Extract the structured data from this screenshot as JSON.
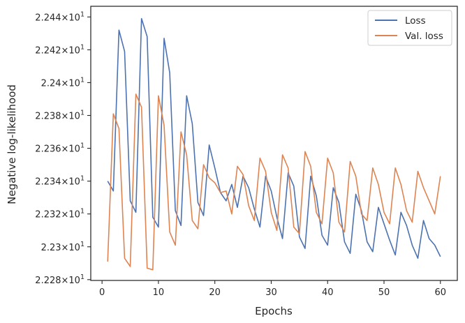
{
  "chart_data": {
    "type": "line",
    "title": "",
    "xlabel": "Epochs",
    "ylabel": "Negative log-likelihood",
    "xlim": [
      -2,
      63
    ],
    "ylim": [
      22.2795,
      22.4465
    ],
    "x_ticks": [
      0,
      10,
      20,
      30,
      40,
      50,
      60
    ],
    "y_ticks": [
      {
        "value": 22.28,
        "mantissa": "2.228",
        "base": "10",
        "exp": "1"
      },
      {
        "value": 22.3,
        "mantissa": "2.23",
        "base": "10",
        "exp": "1"
      },
      {
        "value": 22.32,
        "mantissa": "2.232",
        "base": "10",
        "exp": "1"
      },
      {
        "value": 22.34,
        "mantissa": "2.234",
        "base": "10",
        "exp": "1"
      },
      {
        "value": 22.36,
        "mantissa": "2.236",
        "base": "10",
        "exp": "1"
      },
      {
        "value": 22.38,
        "mantissa": "2.238",
        "base": "10",
        "exp": "1"
      },
      {
        "value": 22.4,
        "mantissa": "2.24",
        "base": "10",
        "exp": "1"
      },
      {
        "value": 22.42,
        "mantissa": "2.242",
        "base": "10",
        "exp": "1"
      },
      {
        "value": 22.44,
        "mantissa": "2.244",
        "base": "10",
        "exp": "1"
      }
    ],
    "grid": false,
    "legend_position": "top-right",
    "x": [
      1,
      2,
      3,
      4,
      5,
      6,
      7,
      8,
      9,
      10,
      11,
      12,
      13,
      14,
      15,
      16,
      17,
      18,
      19,
      20,
      21,
      22,
      23,
      24,
      25,
      26,
      27,
      28,
      29,
      30,
      31,
      32,
      33,
      34,
      35,
      36,
      37,
      38,
      39,
      40,
      41,
      42,
      43,
      44,
      45,
      46,
      47,
      48,
      49,
      50,
      51,
      52,
      53,
      54,
      55,
      56,
      57,
      58,
      59,
      60
    ],
    "series": [
      {
        "name": "Loss",
        "color": "#4c72b0",
        "values": [
          22.34,
          22.334,
          22.432,
          22.419,
          22.328,
          22.321,
          22.439,
          22.428,
          22.318,
          22.312,
          22.427,
          22.406,
          22.322,
          22.313,
          22.392,
          22.375,
          22.327,
          22.319,
          22.362,
          22.348,
          22.333,
          22.328,
          22.338,
          22.324,
          22.343,
          22.336,
          22.323,
          22.312,
          22.343,
          22.334,
          22.318,
          22.305,
          22.345,
          22.337,
          22.306,
          22.299,
          22.343,
          22.331,
          22.307,
          22.301,
          22.336,
          22.327,
          22.303,
          22.296,
          22.332,
          22.322,
          22.303,
          22.297,
          22.324,
          22.314,
          22.304,
          22.295,
          22.321,
          22.313,
          22.301,
          22.293,
          22.316,
          22.305,
          22.301,
          22.294
        ]
      },
      {
        "name": "Val. loss",
        "color": "#dd8452",
        "values": [
          22.291,
          22.381,
          22.372,
          22.293,
          22.288,
          22.393,
          22.385,
          22.287,
          22.286,
          22.392,
          22.374,
          22.309,
          22.301,
          22.37,
          22.356,
          22.316,
          22.311,
          22.35,
          22.342,
          22.339,
          22.333,
          22.334,
          22.32,
          22.349,
          22.344,
          22.325,
          22.316,
          22.354,
          22.346,
          22.321,
          22.31,
          22.356,
          22.348,
          22.312,
          22.308,
          22.358,
          22.349,
          22.321,
          22.314,
          22.354,
          22.345,
          22.315,
          22.309,
          22.352,
          22.343,
          22.32,
          22.316,
          22.348,
          22.338,
          22.321,
          22.314,
          22.348,
          22.338,
          22.322,
          22.315,
          22.346,
          22.336,
          22.328,
          22.32,
          22.343
        ]
      }
    ]
  }
}
